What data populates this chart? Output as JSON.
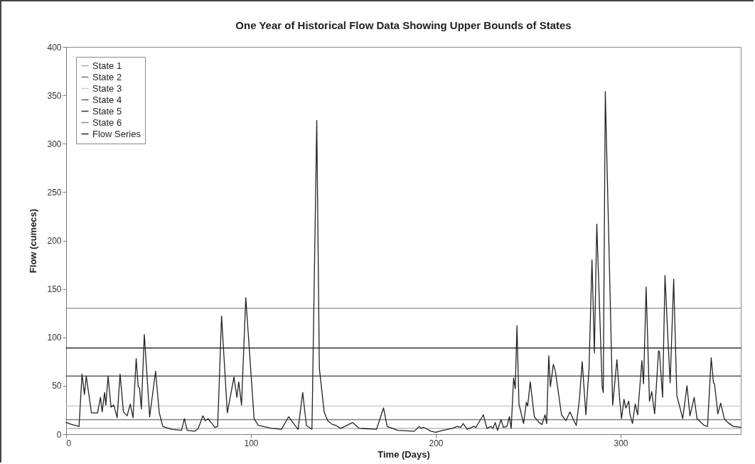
{
  "chart_data": {
    "type": "line",
    "title": "One Year of Historical Flow Data Showing Upper Bounds of States",
    "xlabel": "Time (Days)",
    "ylabel": "Flow (cumecs)",
    "xlim": [
      0,
      365
    ],
    "xticks": [
      0,
      100,
      200,
      300
    ],
    "ylim": [
      0,
      400
    ],
    "yticks": [
      0,
      50,
      100,
      150,
      200,
      250,
      300,
      350,
      400
    ],
    "grid": false,
    "legend": "top left",
    "line_style": "solid",
    "marker": "none",
    "series": [
      {
        "name": "State 1",
        "color": "#a8a8a8",
        "x": [
          0,
          365
        ],
        "values": [
          6,
          6
        ]
      },
      {
        "name": "State 2",
        "color": "#707070",
        "x": [
          0,
          365
        ],
        "values": [
          15,
          15
        ]
      },
      {
        "name": "State 3",
        "color": "#cccccc",
        "x": [
          0,
          365
        ],
        "values": [
          29,
          29
        ]
      },
      {
        "name": "State 4",
        "color": "#5c5c5c",
        "x": [
          0,
          365
        ],
        "values": [
          60,
          60
        ]
      },
      {
        "name": "State 5",
        "color": "#303030",
        "x": [
          0,
          365
        ],
        "values": [
          89,
          89
        ]
      },
      {
        "name": "State 6",
        "color": "#8c8c8c",
        "x": [
          0,
          365
        ],
        "values": [
          130,
          130
        ]
      },
      {
        "name": "Flow Series",
        "color": "#222222",
        "x": [
          0,
          3,
          5,
          7,
          8.6,
          9.9,
          10.9,
          13.7,
          17,
          18.6,
          19.5,
          20.8,
          21.5,
          22.7,
          24.3,
          25.8,
          27.6,
          29.2,
          31,
          33,
          34.7,
          36.2,
          37.9,
          39,
          39.7,
          40.7,
          42.3,
          45.2,
          48.4,
          50.4,
          52.3,
          57,
          62.4,
          64,
          65.5,
          69.6,
          71.5,
          74,
          75.3,
          76.8,
          80.5,
          82,
          84.1,
          87.2,
          90.8,
          92.4,
          93.4,
          94.9,
          97.2,
          101.7,
          104,
          111.4,
          116.5,
          120.4,
          124.2,
          125.5,
          128,
          130,
          133,
          135.6,
          137,
          139.6,
          141.5,
          144,
          146,
          148.6,
          155,
          158.5,
          167.9,
          171.7,
          173.7,
          179.4,
          188.4,
          191,
          192,
          193.5,
          197.4,
          200,
          203.8,
          208.9,
          211.6,
          213.5,
          214.8,
          217,
          220.5,
          221.7,
          225.7,
          227.7,
          229.8,
          231,
          232.1,
          233.4,
          235.3,
          236.6,
          238.5,
          239.8,
          240.8,
          242.1,
          243,
          243.9,
          245,
          247,
          247.5,
          249,
          249.7,
          251.1,
          253.3,
          255.9,
          257.5,
          259.1,
          260,
          261.1,
          262,
          263.6,
          264.7,
          268,
          270.4,
          272.6,
          274.7,
          276,
          277.7,
          279.2,
          281.2,
          282.9,
          284.5,
          285.8,
          287.1,
          290,
          290.6,
          291.7,
          295.7,
          298,
          299.6,
          300.5,
          301.8,
          302.8,
          304.4,
          305,
          306.4,
          307.9,
          309.2,
          311.5,
          312.4,
          313.8,
          315.6,
          316.8,
          318.4,
          320.5,
          321,
          322.7,
          324,
          325.6,
          326.8,
          328.7,
          330.4,
          333.6,
          335.9,
          337.5,
          339.8,
          341.3,
          345.2,
          347,
          349,
          350.2,
          350.8,
          352.6,
          354.1,
          356.1,
          358,
          361,
          365
        ],
        "values": [
          12,
          10,
          9,
          8,
          62,
          41,
          60,
          22,
          22,
          38,
          23,
          43,
          30,
          60,
          28,
          30,
          17,
          62,
          23,
          19,
          31,
          17,
          78,
          49,
          48,
          26,
          103,
          18,
          65,
          22,
          8,
          5,
          4,
          16,
          4,
          3,
          6,
          19,
          14,
          16,
          7,
          8,
          122,
          22,
          59,
          38,
          54,
          30,
          141,
          16,
          9,
          6,
          5,
          18,
          8,
          5,
          43,
          9,
          5,
          324,
          68,
          23,
          14,
          10,
          9,
          6,
          12,
          6,
          5,
          27,
          8,
          4,
          3,
          8,
          6,
          7,
          3,
          2,
          4,
          6,
          8,
          7,
          11,
          5,
          8,
          7,
          20,
          6,
          8,
          6,
          12,
          4,
          15,
          7,
          8,
          18,
          6,
          58,
          47,
          112,
          31,
          15,
          11,
          33,
          29,
          54,
          18,
          12,
          10,
          20,
          11,
          81,
          49,
          72,
          65,
          20,
          14,
          23,
          14,
          9,
          36,
          75,
          20,
          68,
          180,
          84,
          217,
          49,
          43,
          354,
          30,
          77,
          33,
          16,
          36,
          27,
          34,
          21,
          11,
          31,
          20,
          76,
          52,
          152,
          34,
          44,
          21,
          86,
          85,
          38,
          164,
          98,
          53,
          160,
          40,
          16,
          50,
          19,
          38,
          16,
          9,
          8,
          79,
          53,
          52,
          21,
          32,
          16,
          12,
          8,
          7
        ]
      }
    ]
  }
}
